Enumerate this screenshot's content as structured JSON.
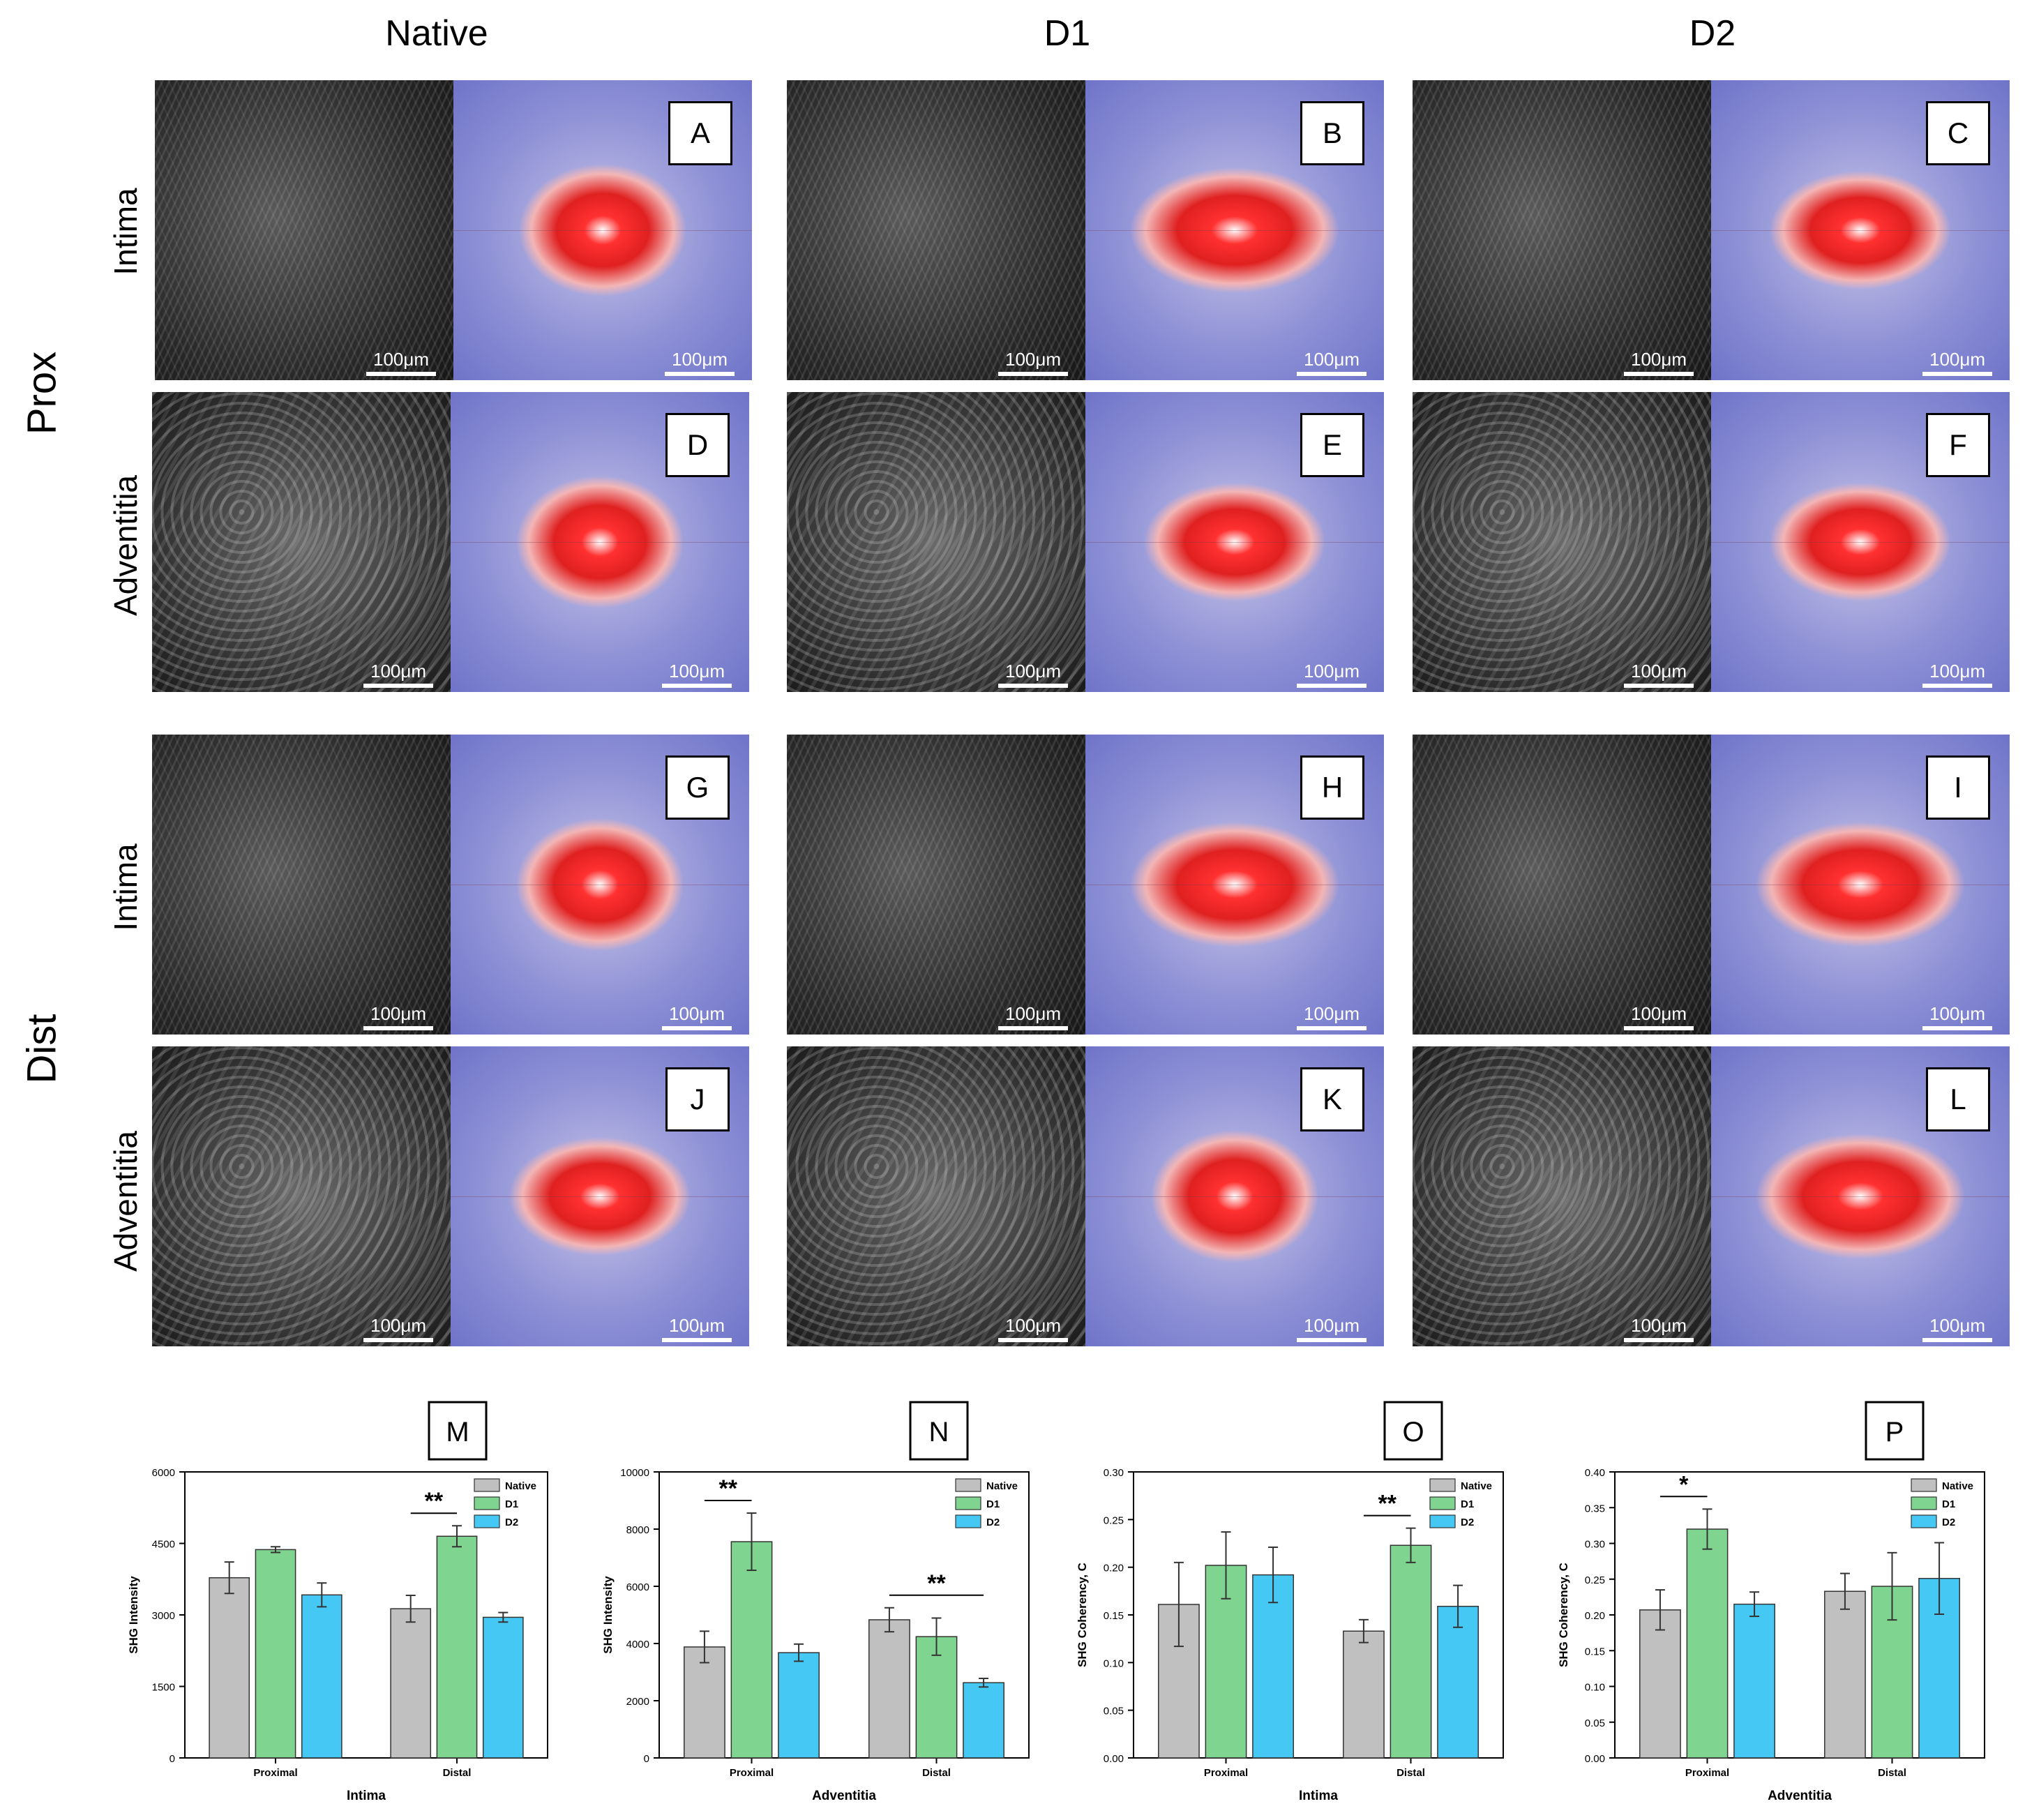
{
  "columns": [
    "Native",
    "D1",
    "D2"
  ],
  "rows": [
    "Prox",
    "Dist"
  ],
  "layers": [
    "Intima",
    "Adventitia",
    "Intima",
    "Adventitia"
  ],
  "panels": [
    {
      "letter": "A",
      "scale_left": "100μm",
      "scale_right": "100μm"
    },
    {
      "letter": "B",
      "scale_left": "100μm",
      "scale_right": "100μm"
    },
    {
      "letter": "C",
      "scale_left": "100μm",
      "scale_right": "100μm"
    },
    {
      "letter": "D",
      "scale_left": "100μm",
      "scale_right": "100μm"
    },
    {
      "letter": "E",
      "scale_left": "100μm",
      "scale_right": "100μm"
    },
    {
      "letter": "F",
      "scale_left": "100μm",
      "scale_right": "100μm"
    },
    {
      "letter": "G",
      "scale_left": "100μm",
      "scale_right": "100μm"
    },
    {
      "letter": "H",
      "scale_left": "100μm",
      "scale_right": "100μm"
    },
    {
      "letter": "I",
      "scale_left": "100μm",
      "scale_right": "100μm"
    },
    {
      "letter": "J",
      "scale_left": "100μm",
      "scale_right": "100μm"
    },
    {
      "letter": "K",
      "scale_left": "100μm",
      "scale_right": "100μm"
    },
    {
      "letter": "L",
      "scale_left": "100μm",
      "scale_right": "100μm"
    }
  ],
  "colors": {
    "Native": "#c0c0c0",
    "D1": "#7fd48f",
    "D2": "#46c8f5"
  },
  "chart_data": [
    {
      "letter": "M",
      "type": "bar",
      "categories": [
        "Proximal",
        "Distal"
      ],
      "xlabel": "Intima",
      "ylabel": "SHG Intensity",
      "ylim": [
        0,
        6000
      ],
      "yticks": [
        0,
        1500,
        3000,
        4500,
        6000
      ],
      "tick_decimals": 0,
      "legend": [
        "Native",
        "D1",
        "D2"
      ],
      "series": [
        {
          "name": "Native",
          "values": [
            3780,
            3130
          ],
          "errors": [
            330,
            280
          ]
        },
        {
          "name": "D1",
          "values": [
            4370,
            4650
          ],
          "errors": [
            60,
            220
          ]
        },
        {
          "name": "D2",
          "values": [
            3420,
            2950
          ],
          "errors": [
            250,
            100
          ]
        }
      ],
      "significance": [
        {
          "label": "**",
          "category": 1,
          "from": 0,
          "to": 1
        }
      ]
    },
    {
      "letter": "N",
      "type": "bar",
      "categories": [
        "Proximal",
        "Distal"
      ],
      "xlabel": "Adventitia",
      "ylabel": "SHG Intensity",
      "ylim": [
        0,
        10000
      ],
      "yticks": [
        0,
        2000,
        4000,
        6000,
        8000,
        10000
      ],
      "tick_decimals": 0,
      "legend": [
        "Native",
        "D1",
        "D2"
      ],
      "series": [
        {
          "name": "Native",
          "values": [
            3880,
            4830
          ],
          "errors": [
            550,
            420
          ]
        },
        {
          "name": "D1",
          "values": [
            7560,
            4240
          ],
          "errors": [
            1000,
            650
          ]
        },
        {
          "name": "D2",
          "values": [
            3680,
            2630
          ],
          "errors": [
            300,
            150
          ]
        }
      ],
      "significance": [
        {
          "label": "**",
          "category": 0,
          "from": 0,
          "to": 1
        },
        {
          "label": "**",
          "category": 1,
          "from": 0,
          "to": 2
        }
      ]
    },
    {
      "letter": "O",
      "type": "bar",
      "categories": [
        "Proximal",
        "Distal"
      ],
      "xlabel": "Intima",
      "ylabel": "SHG Coherency, C",
      "ylim": [
        0,
        0.3
      ],
      "yticks": [
        0,
        0.05,
        0.1,
        0.15,
        0.2,
        0.25,
        0.3
      ],
      "tick_decimals": 2,
      "legend": [
        "Native",
        "D1",
        "D2"
      ],
      "series": [
        {
          "name": "Native",
          "values": [
            0.161,
            0.133
          ],
          "errors": [
            0.044,
            0.012
          ]
        },
        {
          "name": "D1",
          "values": [
            0.202,
            0.223
          ],
          "errors": [
            0.035,
            0.018
          ]
        },
        {
          "name": "D2",
          "values": [
            0.192,
            0.159
          ],
          "errors": [
            0.029,
            0.022
          ]
        }
      ],
      "significance": [
        {
          "label": "**",
          "category": 1,
          "from": 0,
          "to": 1
        }
      ]
    },
    {
      "letter": "P",
      "type": "bar",
      "categories": [
        "Proximal",
        "Distal"
      ],
      "xlabel": "Adventitia",
      "ylabel": "SHG Coherency, C",
      "ylim": [
        0,
        0.4
      ],
      "yticks": [
        0,
        0.05,
        0.1,
        0.15,
        0.2,
        0.25,
        0.3,
        0.35,
        0.4
      ],
      "tick_decimals": 2,
      "legend": [
        "Native",
        "D1",
        "D2"
      ],
      "series": [
        {
          "name": "Native",
          "values": [
            0.207,
            0.233
          ],
          "errors": [
            0.028,
            0.025
          ]
        },
        {
          "name": "D1",
          "values": [
            0.32,
            0.24
          ],
          "errors": [
            0.028,
            0.047
          ]
        },
        {
          "name": "D2",
          "values": [
            0.215,
            0.251
          ],
          "errors": [
            0.017,
            0.05
          ]
        }
      ],
      "significance": [
        {
          "label": "*",
          "category": 0,
          "from": 0,
          "to": 1
        }
      ]
    }
  ]
}
